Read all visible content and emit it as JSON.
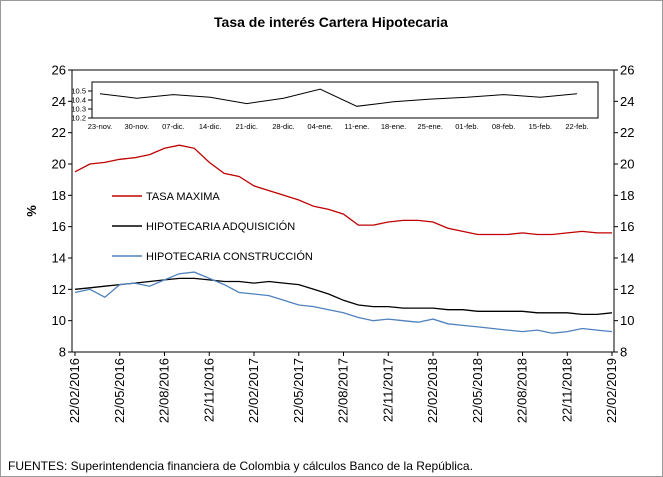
{
  "chart_data": [
    {
      "type": "line",
      "title": "Tasa de interés Cartera Hipotecaria",
      "y_label": "%",
      "categories": [
        "22/02/2016",
        null,
        null,
        "22/05/2016",
        null,
        null,
        "22/08/2016",
        null,
        null,
        "22/11/2016",
        null,
        null,
        "22/02/2017",
        null,
        null,
        "22/05/2017",
        null,
        null,
        "22/08/2017",
        null,
        null,
        "22/11/2017",
        null,
        null,
        "22/02/2018",
        null,
        null,
        "22/05/2018",
        null,
        null,
        "22/08/2018",
        null,
        null,
        "22/11/2018",
        null,
        null,
        "22/02/2019"
      ],
      "series": [
        {
          "name": "TASA MAXIMA",
          "color": "#c00000",
          "values": [
            19.5,
            20.0,
            20.1,
            20.3,
            20.4,
            20.6,
            21.0,
            21.2,
            21.0,
            20.1,
            19.4,
            19.2,
            18.6,
            18.3,
            18.0,
            17.7,
            17.3,
            17.1,
            16.8,
            16.1,
            16.1,
            16.3,
            16.4,
            16.4,
            16.3,
            15.9,
            15.7,
            15.5,
            15.5,
            15.5,
            15.6,
            15.5,
            15.5,
            15.6,
            15.7,
            15.6,
            15.6
          ]
        },
        {
          "name": "HIPOTECARIA ADQUISICIÓN",
          "color": "#000000",
          "values": [
            12.0,
            12.1,
            12.2,
            12.3,
            12.4,
            12.5,
            12.6,
            12.7,
            12.7,
            12.6,
            12.5,
            12.5,
            12.4,
            12.5,
            12.4,
            12.3,
            12.0,
            11.7,
            11.3,
            11.0,
            10.9,
            10.9,
            10.8,
            10.8,
            10.8,
            10.7,
            10.7,
            10.6,
            10.6,
            10.6,
            10.6,
            10.5,
            10.5,
            10.5,
            10.4,
            10.4,
            10.5
          ]
        },
        {
          "name": "HIPOTECARIA CONSTRUCCIÓN",
          "color": "#4f81bd",
          "values": [
            11.8,
            12.0,
            11.5,
            12.3,
            12.4,
            12.2,
            12.6,
            13.0,
            13.1,
            12.7,
            12.3,
            11.8,
            11.7,
            11.6,
            11.3,
            11.0,
            10.9,
            10.7,
            10.5,
            10.2,
            10.0,
            10.1,
            10.0,
            9.9,
            10.1,
            9.8,
            9.7,
            9.6,
            9.5,
            9.4,
            9.3,
            9.4,
            9.2,
            9.3,
            9.5,
            9.4,
            9.3
          ]
        }
      ],
      "ylim": [
        8,
        26
      ],
      "yticks": [
        8,
        10,
        12,
        14,
        16,
        18,
        20,
        22,
        24,
        26
      ],
      "y2lim": [
        8,
        26
      ],
      "y2ticks": [
        8,
        10,
        12,
        14,
        16,
        18,
        20,
        22,
        24,
        26
      ],
      "grid": false
    },
    {
      "type": "line",
      "categories": [
        "23-nov.",
        "30-nov.",
        "07-dic.",
        "14-dic.",
        "21-dic.",
        "28-dic.",
        "04-ene.",
        "11-ene.",
        "18-ene.",
        "25-ene.",
        "01-feb.",
        "08-feb.",
        "15-feb.",
        "22-feb."
      ],
      "series": [
        {
          "color": "#000000",
          "values": [
            10.47,
            10.42,
            10.46,
            10.43,
            10.36,
            10.42,
            10.52,
            10.33,
            10.38,
            10.41,
            10.43,
            10.46,
            10.43,
            10.47
          ]
        }
      ],
      "ylim": [
        10.2,
        10.6
      ],
      "yticks": [
        10.2,
        10.3,
        10.4,
        10.5
      ]
    }
  ],
  "source": "FUENTES: Superintendencia financiera de Colombia y cálculos Banco de la República."
}
